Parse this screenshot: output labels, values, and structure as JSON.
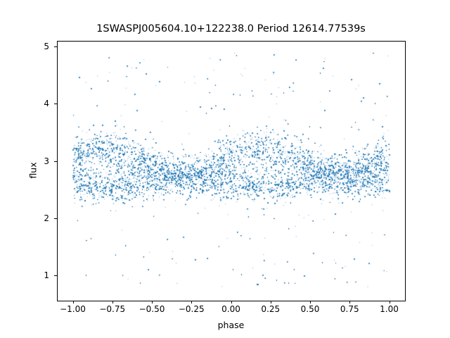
{
  "chart_data": {
    "type": "scatter",
    "title": "1SWASPJ005604.10+122238.0 Period 12614.77539s",
    "xlabel": "phase",
    "ylabel": "flux",
    "xlim": [
      -1.1,
      1.1
    ],
    "ylim": [
      0.56,
      5.1
    ],
    "xticks": [
      -1.0,
      -0.75,
      -0.5,
      -0.25,
      0.0,
      0.25,
      0.5,
      0.75,
      1.0
    ],
    "xtick_labels": [
      "−1.00",
      "−0.75",
      "−0.50",
      "−0.25",
      "0.00",
      "0.25",
      "0.50",
      "0.75",
      "1.00"
    ],
    "yticks": [
      1,
      2,
      3,
      4,
      5
    ],
    "ytick_labels": [
      "1",
      "2",
      "3",
      "4",
      "5"
    ],
    "point_color": "#1f77b4",
    "grid": false
  }
}
